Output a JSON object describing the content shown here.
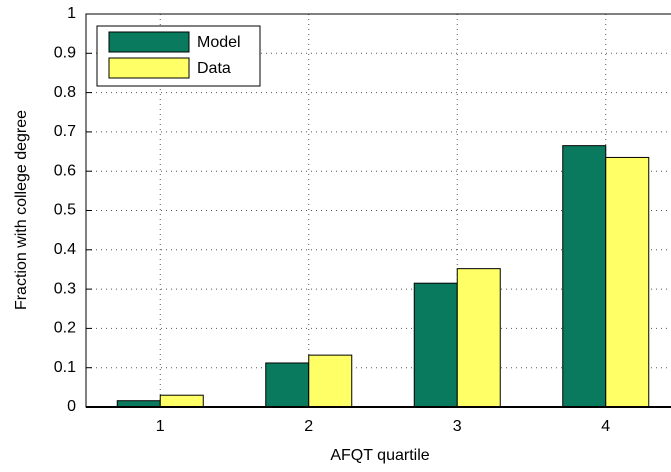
{
  "chart_data": {
    "type": "bar",
    "x_label": "AFQT quartile",
    "y_label": "Fraction with college degree",
    "categories": [
      "1",
      "2",
      "3",
      "4"
    ],
    "series": [
      {
        "name": "Model",
        "color": "#0a7a5e",
        "values": [
          0.016,
          0.112,
          0.315,
          0.665
        ]
      },
      {
        "name": "Data",
        "color": "#ffff66",
        "values": [
          0.03,
          0.132,
          0.352,
          0.635
        ]
      }
    ],
    "ylim": [
      0,
      1
    ],
    "yticks": [
      0,
      0.1,
      0.2,
      0.3,
      0.4,
      0.5,
      0.6,
      0.7,
      0.8,
      0.9,
      1
    ],
    "grid": true,
    "legend": "upper-left"
  }
}
